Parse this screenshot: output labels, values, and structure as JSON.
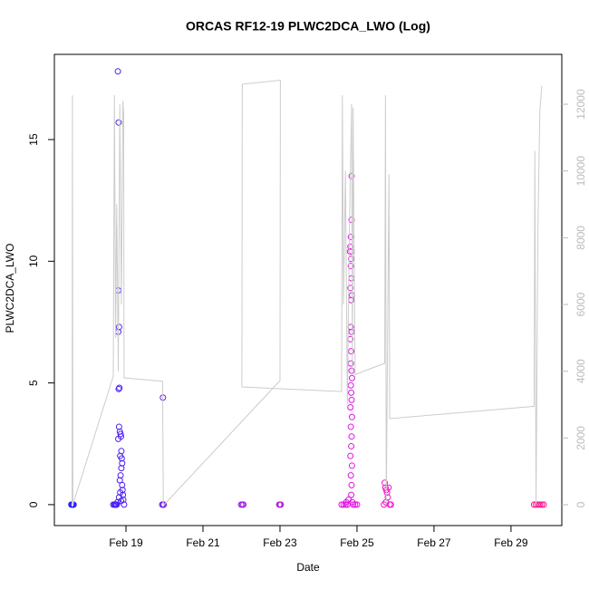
{
  "chart_data": {
    "type": "scatter",
    "title": "ORCAS RF12-19 PLWC2DCA_LWO (Log)",
    "x_label": "Date",
    "y_label": "PLWC2DCA_LWO",
    "xlim": [
      17.14,
      30.32
    ],
    "xticks": [
      {
        "value": 19,
        "label": "Feb 19"
      },
      {
        "value": 21,
        "label": "Feb 21"
      },
      {
        "value": 23,
        "label": "Feb 23"
      },
      {
        "value": 25,
        "label": "Feb 25"
      },
      {
        "value": 27,
        "label": "Feb 27"
      },
      {
        "value": 29,
        "label": "Feb 29"
      }
    ],
    "ylim": [
      -0.86,
      18.5
    ],
    "yticks": [
      0,
      5,
      10,
      15
    ],
    "y2lim": [
      -624,
      13494
    ],
    "y2ticks": [
      0,
      2000,
      4000,
      6000,
      8000,
      10000,
      12000
    ],
    "series": [
      {
        "color": "#2a1cff",
        "x": [
          17.58,
          17.6,
          17.62,
          17.64
        ],
        "values": [
          0,
          0,
          0,
          0
        ]
      },
      {
        "color": "#4d1ef5",
        "x": [
          18.67,
          18.7,
          18.72,
          18.74,
          18.76,
          18.78,
          18.79,
          18.81,
          18.8,
          18.82,
          18.8,
          18.83,
          18.81,
          18.82,
          18.84,
          18.8,
          18.86,
          18.87,
          18.88,
          18.85,
          18.89,
          18.9,
          18.88,
          18.86,
          18.84,
          18.9,
          18.91,
          18.92,
          18.93,
          18.95,
          18.82,
          18.85,
          18.87
        ],
        "values": [
          0,
          0,
          0,
          0,
          0,
          0.1,
          17.8,
          15.7,
          8.8,
          7.3,
          7.1,
          4.8,
          4.75,
          3.2,
          3.0,
          2.7,
          2.9,
          2.8,
          2.2,
          2.0,
          1.9,
          1.7,
          1.5,
          1.2,
          1.0,
          0.8,
          0.6,
          0.4,
          0.2,
          0,
          0.3,
          0.5,
          0.15
        ]
      },
      {
        "color": "#6a1cee",
        "x": [
          19.94,
          19.96,
          19.97,
          19.98
        ],
        "values": [
          0,
          4.4,
          0,
          0
        ]
      },
      {
        "color": "#a020e6",
        "x": [
          21.99,
          22.02,
          22.05
        ],
        "values": [
          0,
          0,
          0
        ]
      },
      {
        "color": "#b41ee0",
        "x": [
          22.98,
          23.0,
          23.02
        ],
        "values": [
          0,
          0,
          0
        ]
      },
      {
        "color": "#e012e2",
        "x": [
          24.6,
          24.65,
          24.7,
          24.75,
          24.72,
          24.78,
          24.86,
          24.86,
          24.84,
          24.83,
          24.82,
          24.86,
          24.85,
          24.84,
          24.86,
          24.83,
          24.87,
          24.85,
          24.84,
          24.86,
          24.83,
          24.85,
          24.84,
          24.86,
          24.87,
          24.84,
          24.85,
          24.86,
          24.83,
          24.87,
          24.84,
          24.86,
          24.85,
          24.83,
          24.87,
          24.84,
          24.86,
          24.85,
          24.88,
          24.9,
          24.95,
          25.0
        ],
        "values": [
          0,
          0,
          0,
          0,
          0.1,
          0.2,
          13.5,
          11.7,
          11.0,
          10.6,
          10.4,
          10.4,
          10.1,
          9.8,
          9.3,
          8.9,
          8.6,
          8.4,
          7.3,
          7.1,
          6.8,
          6.3,
          5.8,
          5.5,
          5.2,
          4.9,
          4.6,
          4.3,
          4.0,
          3.6,
          3.2,
          2.8,
          2.4,
          2.0,
          1.6,
          1.2,
          0.8,
          0.4,
          0.1,
          0,
          0,
          0
        ]
      },
      {
        "color": "#f414c8",
        "x": [
          25.7,
          25.72,
          25.74,
          25.75,
          25.76,
          25.78,
          25.8,
          25.82,
          25.85,
          25.88
        ],
        "values": [
          0,
          0.9,
          0.7,
          0.1,
          0.6,
          0.5,
          0.3,
          0.7,
          0,
          0
        ]
      },
      {
        "color": "#ff128e",
        "x": [
          29.6,
          29.65,
          29.7,
          29.75,
          29.8,
          29.85
        ],
        "values": [
          0,
          0,
          0,
          0,
          0,
          0
        ]
      },
      {
        "type": "line",
        "axis": "y2",
        "color": "#cccccc",
        "x": [
          17.6,
          17.61,
          17.62,
          18.67,
          18.7,
          18.73,
          18.76,
          18.8,
          18.84,
          18.88,
          18.92,
          18.94,
          18.95,
          19.95,
          19.97,
          19.99,
          23.0,
          23.01,
          22.02,
          22.01,
          24.6,
          24.62,
          24.65,
          24.7,
          24.75,
          24.8,
          24.86,
          24.88,
          24.9,
          24.95,
          25.72,
          25.74,
          25.76,
          25.83,
          25.85,
          29.6,
          29.62,
          29.65,
          29.7,
          29.75,
          29.8
        ],
        "values": [
          0,
          12270,
          0,
          3850,
          12270,
          5000,
          9000,
          4000,
          12000,
          6000,
          12100,
          11700,
          3800,
          3700,
          0,
          0,
          3720,
          12720,
          12600,
          3530,
          3390,
          12270,
          6000,
          10000,
          3000,
          8000,
          12000,
          4000,
          11900,
          3900,
          4240,
          12270,
          0,
          9900,
          2580,
          2950,
          10600,
          0,
          8300,
          11800,
          12550
        ]
      }
    ]
  }
}
